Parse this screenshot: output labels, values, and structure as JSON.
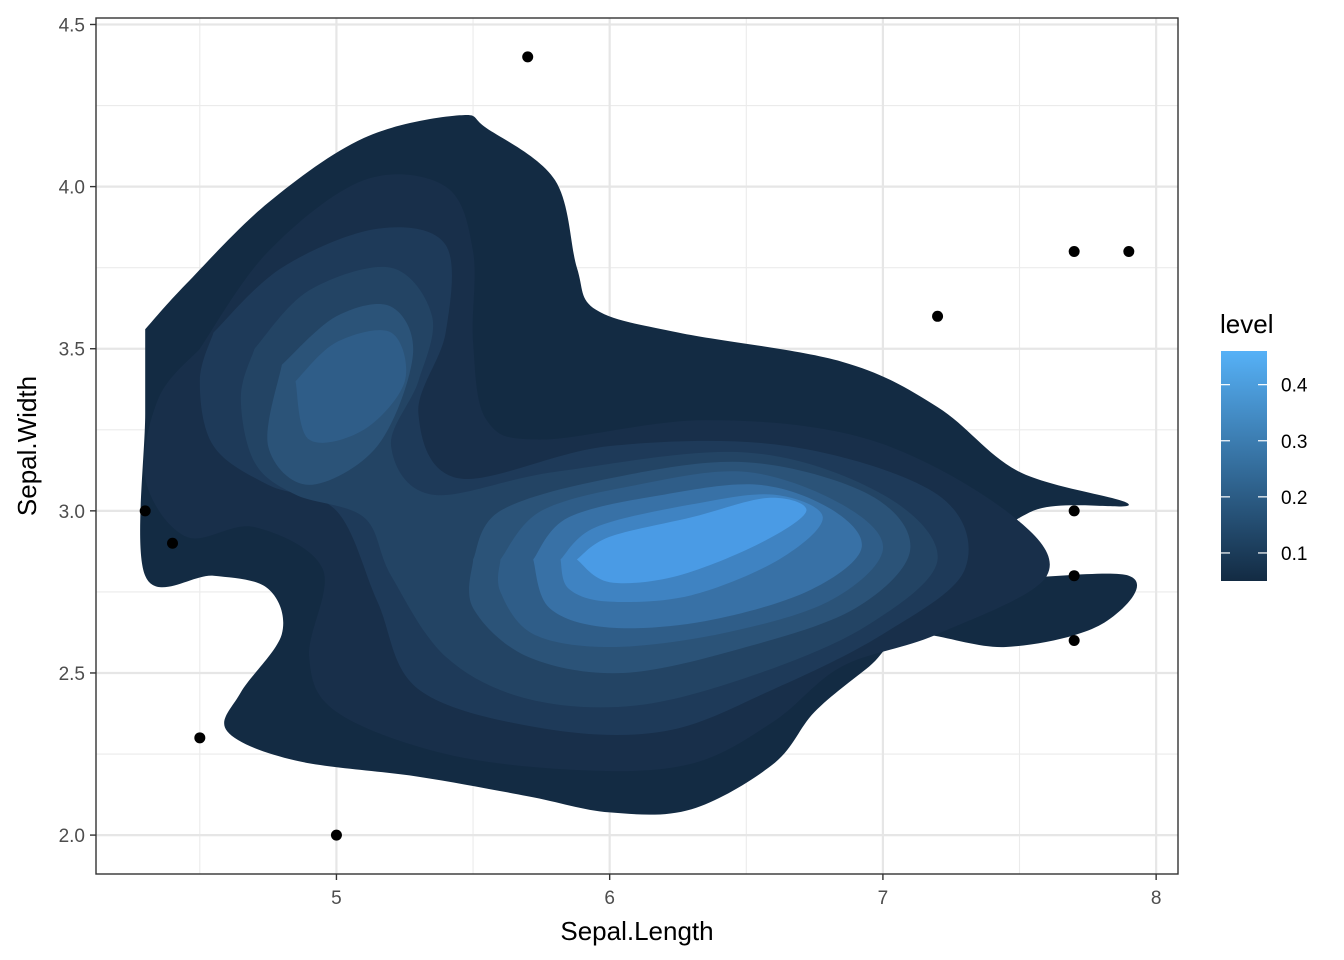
{
  "chart_data": {
    "type": "density2d_filled_with_scatter",
    "xlabel": "Sepal.Length",
    "ylabel": "Sepal.Width",
    "xlim": [
      4.12,
      8.08
    ],
    "ylim": [
      1.88,
      4.52
    ],
    "x_ticks": [
      5,
      6,
      7,
      8
    ],
    "x_tick_labels": [
      "5",
      "6",
      "7",
      "8"
    ],
    "y_ticks": [
      2.0,
      2.5,
      3.0,
      3.5,
      4.0,
      4.5
    ],
    "y_tick_labels": [
      "2.0",
      "2.5",
      "3.0",
      "3.5",
      "4.0",
      "4.5"
    ],
    "grid": true,
    "theme": "bw",
    "legend": {
      "title": "level",
      "position": "right",
      "range": [
        0.05,
        0.46
      ],
      "ticks": [
        0.1,
        0.2,
        0.3,
        0.4
      ],
      "tick_labels": [
        "0.1",
        "0.2",
        "0.3",
        "0.4"
      ],
      "color_low": "#132b43",
      "color_high": "#56b1f7"
    },
    "points": [
      {
        "x": 4.3,
        "y": 3.0
      },
      {
        "x": 4.4,
        "y": 2.9
      },
      {
        "x": 4.5,
        "y": 2.3
      },
      {
        "x": 5.0,
        "y": 2.0
      },
      {
        "x": 5.7,
        "y": 4.4
      },
      {
        "x": 7.2,
        "y": 3.6
      },
      {
        "x": 7.7,
        "y": 3.8
      },
      {
        "x": 7.9,
        "y": 3.8
      },
      {
        "x": 7.7,
        "y": 3.0
      },
      {
        "x": 7.7,
        "y": 2.8
      },
      {
        "x": 7.7,
        "y": 2.6
      }
    ],
    "contour_levels": [
      {
        "level": 0.05,
        "color": "#132b43",
        "path": [
          [
            4.3,
            3.56
          ],
          [
            4.45,
            3.7
          ],
          [
            4.75,
            3.95
          ],
          [
            5.1,
            4.15
          ],
          [
            5.45,
            4.22
          ],
          [
            5.55,
            4.18
          ],
          [
            5.8,
            4.02
          ],
          [
            5.88,
            3.75
          ],
          [
            5.95,
            3.62
          ],
          [
            6.25,
            3.55
          ],
          [
            6.85,
            3.46
          ],
          [
            7.2,
            3.32
          ],
          [
            7.5,
            3.12
          ],
          [
            7.9,
            3.02
          ],
          [
            7.55,
            3.0
          ],
          [
            7.3,
            2.8
          ],
          [
            7.9,
            2.8
          ],
          [
            7.8,
            2.65
          ],
          [
            7.45,
            2.58
          ],
          [
            7.1,
            2.62
          ],
          [
            6.95,
            2.52
          ],
          [
            6.75,
            2.38
          ],
          [
            6.6,
            2.22
          ],
          [
            6.3,
            2.08
          ],
          [
            6.0,
            2.07
          ],
          [
            5.7,
            2.12
          ],
          [
            5.3,
            2.18
          ],
          [
            4.85,
            2.23
          ],
          [
            4.6,
            2.32
          ],
          [
            4.65,
            2.44
          ],
          [
            4.8,
            2.62
          ],
          [
            4.75,
            2.76
          ],
          [
            4.55,
            2.8
          ],
          [
            4.3,
            2.8
          ],
          [
            4.3,
            3.3
          ],
          [
            4.3,
            3.56
          ]
        ]
      },
      {
        "level": 0.1,
        "color": "#182f4a",
        "path": [
          [
            4.5,
            3.5
          ],
          [
            4.75,
            3.8
          ],
          [
            5.1,
            4.02
          ],
          [
            5.4,
            4.0
          ],
          [
            5.5,
            3.8
          ],
          [
            5.5,
            3.52
          ],
          [
            5.55,
            3.28
          ],
          [
            5.75,
            3.22
          ],
          [
            6.35,
            3.28
          ],
          [
            6.95,
            3.22
          ],
          [
            7.45,
            3.0
          ],
          [
            7.6,
            2.8
          ],
          [
            7.2,
            2.62
          ],
          [
            6.85,
            2.52
          ],
          [
            6.6,
            2.35
          ],
          [
            6.3,
            2.22
          ],
          [
            5.9,
            2.2
          ],
          [
            5.4,
            2.25
          ],
          [
            5.0,
            2.38
          ],
          [
            4.9,
            2.55
          ],
          [
            4.95,
            2.82
          ],
          [
            4.7,
            2.95
          ],
          [
            4.45,
            2.92
          ],
          [
            4.3,
            3.1
          ],
          [
            4.35,
            3.35
          ],
          [
            4.5,
            3.5
          ]
        ]
      },
      {
        "level": 0.15,
        "color": "#1e3a59",
        "path": [
          [
            4.55,
            3.55
          ],
          [
            4.8,
            3.75
          ],
          [
            5.15,
            3.87
          ],
          [
            5.4,
            3.82
          ],
          [
            5.4,
            3.55
          ],
          [
            5.3,
            3.3
          ],
          [
            5.45,
            3.1
          ],
          [
            6.0,
            3.2
          ],
          [
            6.65,
            3.2
          ],
          [
            7.2,
            3.05
          ],
          [
            7.3,
            2.82
          ],
          [
            7.0,
            2.62
          ],
          [
            6.6,
            2.45
          ],
          [
            6.2,
            2.32
          ],
          [
            5.75,
            2.33
          ],
          [
            5.3,
            2.45
          ],
          [
            5.15,
            2.72
          ],
          [
            5.0,
            3.0
          ],
          [
            4.75,
            3.08
          ],
          [
            4.55,
            3.2
          ],
          [
            4.5,
            3.4
          ],
          [
            4.55,
            3.55
          ]
        ]
      },
      {
        "level": 0.2,
        "color": "#234464",
        "path": [
          [
            4.7,
            3.5
          ],
          [
            4.9,
            3.68
          ],
          [
            5.2,
            3.75
          ],
          [
            5.35,
            3.6
          ],
          [
            5.3,
            3.4
          ],
          [
            5.2,
            3.2
          ],
          [
            5.35,
            3.05
          ],
          [
            5.8,
            3.12
          ],
          [
            6.5,
            3.18
          ],
          [
            7.0,
            3.05
          ],
          [
            7.2,
            2.85
          ],
          [
            6.95,
            2.65
          ],
          [
            6.55,
            2.5
          ],
          [
            6.1,
            2.4
          ],
          [
            5.7,
            2.42
          ],
          [
            5.4,
            2.55
          ],
          [
            5.2,
            2.8
          ],
          [
            5.1,
            2.98
          ],
          [
            4.85,
            3.05
          ],
          [
            4.7,
            3.15
          ],
          [
            4.65,
            3.35
          ],
          [
            4.7,
            3.5
          ]
        ]
      },
      {
        "level": 0.25,
        "color": "#2b5378",
        "path": [
          [
            4.8,
            3.45
          ],
          [
            5.0,
            3.6
          ],
          [
            5.2,
            3.63
          ],
          [
            5.28,
            3.48
          ],
          [
            5.15,
            3.2
          ],
          [
            4.9,
            3.08
          ],
          [
            4.75,
            3.2
          ],
          [
            4.8,
            3.45
          ]
        ]
      },
      {
        "level": 0.25,
        "color": "#2b5378",
        "path": [
          [
            5.5,
            2.85
          ],
          [
            5.6,
            3.0
          ],
          [
            6.0,
            3.1
          ],
          [
            6.5,
            3.15
          ],
          [
            6.95,
            3.05
          ],
          [
            7.1,
            2.88
          ],
          [
            6.9,
            2.7
          ],
          [
            6.5,
            2.58
          ],
          [
            6.05,
            2.5
          ],
          [
            5.7,
            2.55
          ],
          [
            5.5,
            2.7
          ],
          [
            5.5,
            2.85
          ]
        ]
      },
      {
        "level": 0.3,
        "color": "#2f5d88",
        "path": [
          [
            4.85,
            3.4
          ],
          [
            5.0,
            3.52
          ],
          [
            5.2,
            3.55
          ],
          [
            5.25,
            3.4
          ],
          [
            5.1,
            3.25
          ],
          [
            4.9,
            3.22
          ],
          [
            4.85,
            3.4
          ]
        ]
      },
      {
        "level": 0.3,
        "color": "#2f5d88",
        "path": [
          [
            5.6,
            2.85
          ],
          [
            5.75,
            3.0
          ],
          [
            6.1,
            3.08
          ],
          [
            6.5,
            3.12
          ],
          [
            6.85,
            3.02
          ],
          [
            7.0,
            2.88
          ],
          [
            6.8,
            2.72
          ],
          [
            6.4,
            2.62
          ],
          [
            6.0,
            2.58
          ],
          [
            5.72,
            2.62
          ],
          [
            5.6,
            2.75
          ],
          [
            5.6,
            2.85
          ]
        ]
      },
      {
        "level": 0.35,
        "color": "#3871a6",
        "path": [
          [
            5.72,
            2.85
          ],
          [
            5.85,
            2.98
          ],
          [
            6.2,
            3.05
          ],
          [
            6.55,
            3.08
          ],
          [
            6.82,
            3.0
          ],
          [
            6.92,
            2.88
          ],
          [
            6.72,
            2.75
          ],
          [
            6.35,
            2.66
          ],
          [
            6.0,
            2.64
          ],
          [
            5.78,
            2.7
          ],
          [
            5.72,
            2.85
          ]
        ]
      },
      {
        "level": 0.4,
        "color": "#3f83c2",
        "path": [
          [
            5.82,
            2.85
          ],
          [
            5.95,
            2.95
          ],
          [
            6.3,
            3.02
          ],
          [
            6.6,
            3.05
          ],
          [
            6.78,
            2.98
          ],
          [
            6.62,
            2.85
          ],
          [
            6.3,
            2.74
          ],
          [
            6.0,
            2.72
          ],
          [
            5.85,
            2.76
          ],
          [
            5.82,
            2.85
          ]
        ]
      },
      {
        "level": 0.45,
        "color": "#4a9be5",
        "path": [
          [
            5.88,
            2.85
          ],
          [
            6.0,
            2.92
          ],
          [
            6.3,
            2.98
          ],
          [
            6.58,
            3.04
          ],
          [
            6.72,
            3.0
          ],
          [
            6.55,
            2.9
          ],
          [
            6.25,
            2.8
          ],
          [
            6.0,
            2.78
          ],
          [
            5.88,
            2.85
          ]
        ]
      }
    ]
  }
}
